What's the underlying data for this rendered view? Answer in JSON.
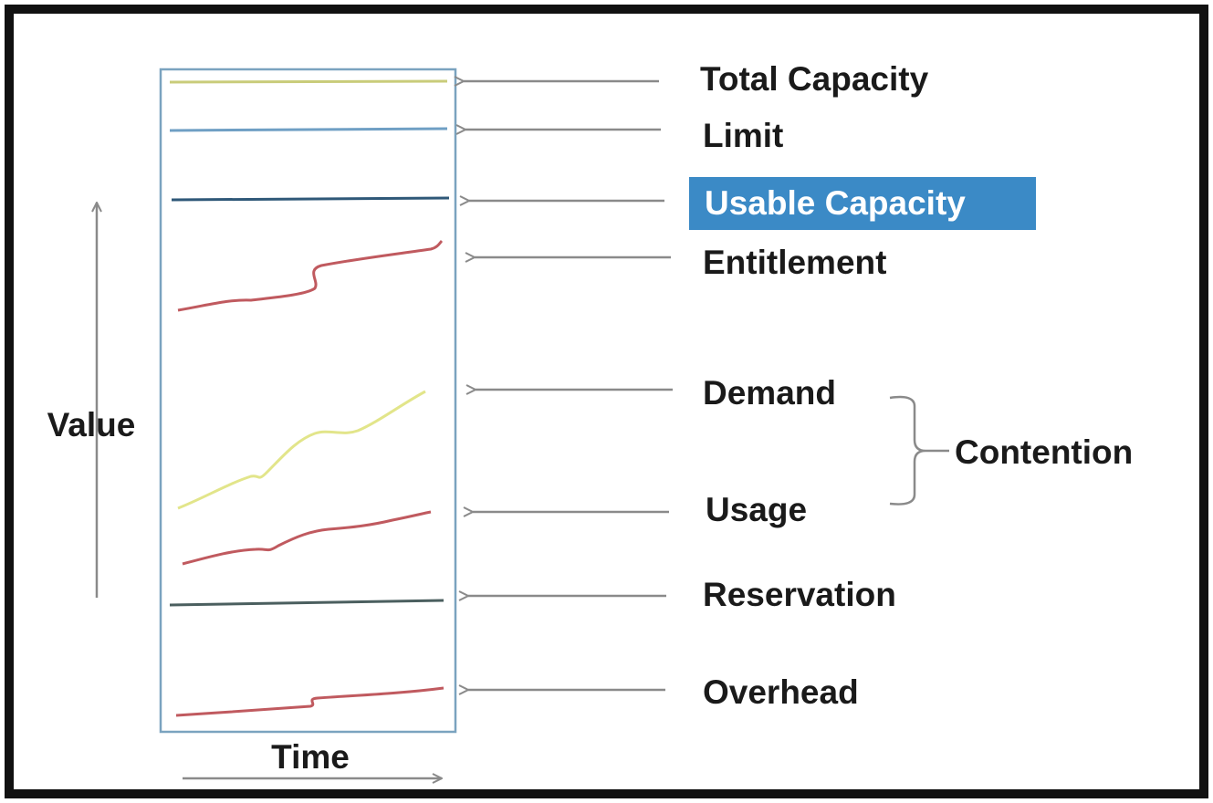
{
  "axes": {
    "y_label": "Value",
    "x_label": "Time"
  },
  "metrics": [
    {
      "id": "total-capacity",
      "label": "Total Capacity",
      "line_style": "flat",
      "color": "#c9cc7a",
      "highlighted": false
    },
    {
      "id": "limit",
      "label": "Limit",
      "line_style": "flat",
      "color": "#6f9fc4",
      "highlighted": false
    },
    {
      "id": "usable-capacity",
      "label": "Usable Capacity",
      "line_style": "flat",
      "color": "#2f5878",
      "highlighted": true
    },
    {
      "id": "entitlement",
      "label": "Entitlement",
      "line_style": "rising-step",
      "color": "#c05a5f",
      "highlighted": false
    },
    {
      "id": "demand",
      "label": "Demand",
      "line_style": "rising",
      "color": "#e2e58a",
      "highlighted": false
    },
    {
      "id": "usage",
      "label": "Usage",
      "line_style": "rising",
      "color": "#c05a5f",
      "highlighted": false
    },
    {
      "id": "reservation",
      "label": "Reservation",
      "line_style": "flat",
      "color": "#4b5f5f",
      "highlighted": false
    },
    {
      "id": "overhead",
      "label": "Overhead",
      "line_style": "slight-step",
      "color": "#c05a5f",
      "highlighted": false
    }
  ],
  "group": {
    "label": "Contention",
    "members": [
      "Demand",
      "Usage"
    ]
  },
  "colors": {
    "highlight": "#3b8ac6",
    "panel_border": "#7aa3bf",
    "arrow": "#8a8a8a",
    "frame": "#111111"
  }
}
